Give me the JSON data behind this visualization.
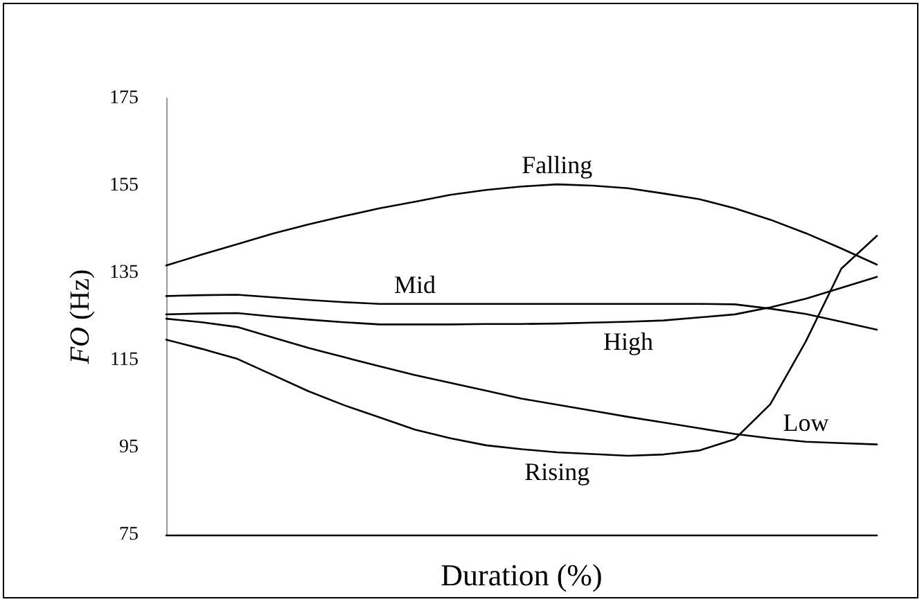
{
  "chart_data": {
    "type": "line",
    "xlabel": "Duration (%)",
    "ylabel": "FO (Hz)",
    "categories": [
      null,
      null,
      null,
      null,
      null,
      null,
      null,
      null,
      null,
      null,
      null,
      null,
      null,
      null,
      null,
      null,
      null,
      null,
      null,
      null,
      null
    ],
    "ylim": [
      75,
      175
    ],
    "yticks": [
      75,
      95,
      115,
      135,
      155,
      175
    ],
    "tick_labels": "y",
    "grid": false,
    "legend": false,
    "marker": "none",
    "line_style": "solid",
    "series": [
      {
        "name": "Falling",
        "color": "#000000",
        "values": [
          136.7,
          139.2,
          141.6,
          144.0,
          146.1,
          148.0,
          149.8,
          151.3,
          152.9,
          154.0,
          154.8,
          155.3,
          155.0,
          154.4,
          153.2,
          151.9,
          149.8,
          147.2,
          144.1,
          140.6,
          136.9
        ]
      },
      {
        "name": "Mid",
        "color": "#000000",
        "values": [
          129.7,
          129.9,
          130.0,
          129.4,
          128.8,
          128.3,
          127.9,
          127.9,
          127.9,
          127.9,
          127.9,
          127.9,
          127.9,
          127.9,
          127.9,
          127.9,
          127.8,
          126.8,
          125.6,
          123.8,
          122.0
        ]
      },
      {
        "name": "High",
        "color": "#000000",
        "values": [
          125.5,
          125.7,
          125.8,
          125.0,
          124.3,
          123.7,
          123.2,
          123.2,
          123.2,
          123.3,
          123.3,
          123.4,
          123.6,
          123.8,
          124.1,
          124.8,
          125.5,
          127.1,
          129.1,
          131.6,
          134.1
        ]
      },
      {
        "name": "Low",
        "color": "#000000",
        "values": [
          124.5,
          123.7,
          122.6,
          120.2,
          117.8,
          115.7,
          113.6,
          111.6,
          109.8,
          108.0,
          106.2,
          104.8,
          103.4,
          102.0,
          100.7,
          99.4,
          98.1,
          97.1,
          96.3,
          96.0,
          95.7
        ]
      },
      {
        "name": "Rising",
        "color": "#000000",
        "values": [
          119.7,
          117.6,
          115.3,
          111.6,
          107.9,
          104.7,
          101.9,
          99.1,
          97.1,
          95.5,
          94.6,
          93.9,
          93.5,
          93.1,
          93.4,
          94.3,
          96.9,
          104.9,
          119.3,
          136.0,
          143.5
        ]
      }
    ]
  }
}
